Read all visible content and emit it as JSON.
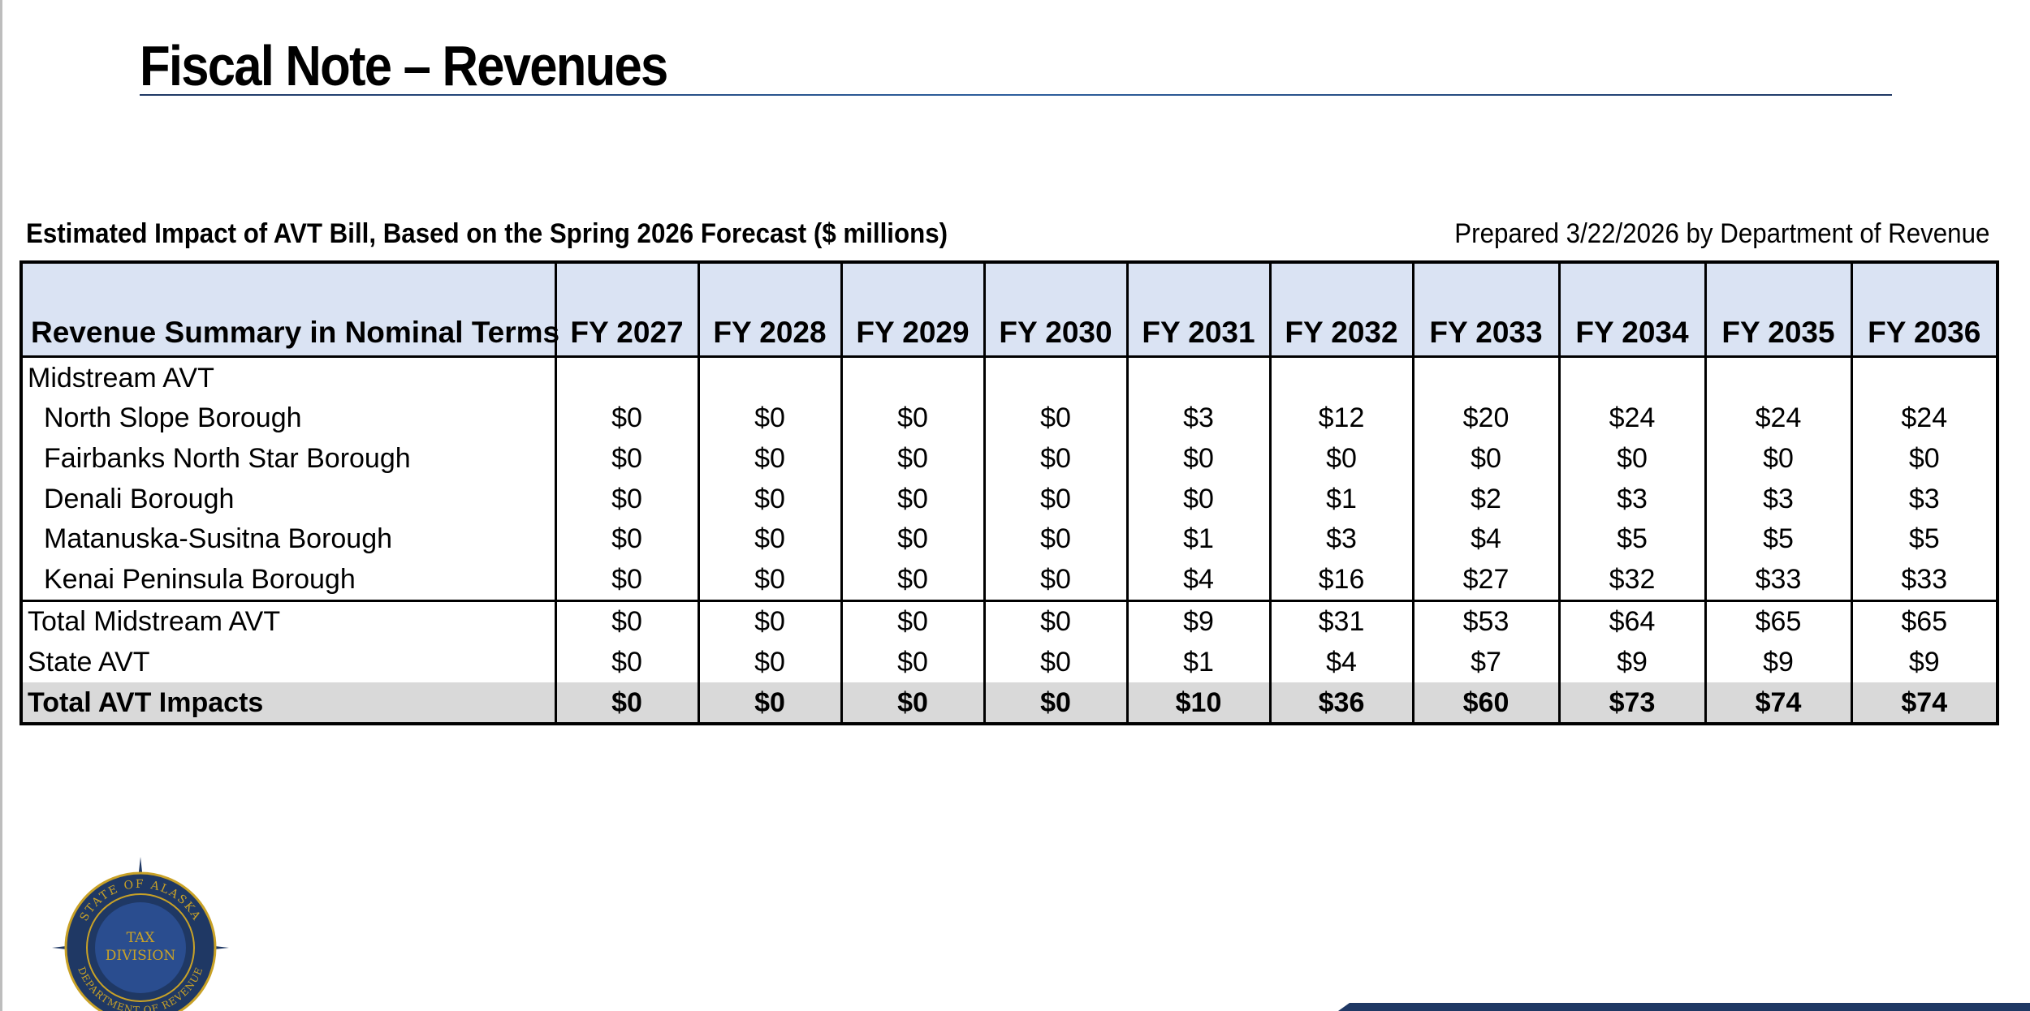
{
  "page": {
    "title": "Fiscal Note – Revenues"
  },
  "caption": {
    "left": "Estimated Impact of AVT Bill, Based on the Spring 2026 Forecast ($ millions)",
    "right": "Prepared 3/22/2026 by Department of Revenue"
  },
  "table": {
    "label_header": "Revenue Summary in Nominal Terms",
    "years": [
      "FY 2027",
      "FY 2028",
      "FY 2029",
      "FY 2030",
      "FY 2031",
      "FY 2032",
      "FY 2033",
      "FY 2034",
      "FY 2035",
      "FY 2036"
    ],
    "section_label": "Midstream AVT",
    "rows": [
      {
        "label": "North Slope Borough",
        "values": [
          "$0",
          "$0",
          "$0",
          "$0",
          "$3",
          "$12",
          "$20",
          "$24",
          "$24",
          "$24"
        ]
      },
      {
        "label": "Fairbanks North Star Borough",
        "values": [
          "$0",
          "$0",
          "$0",
          "$0",
          "$0",
          "$0",
          "$0",
          "$0",
          "$0",
          "$0"
        ]
      },
      {
        "label": "Denali Borough",
        "values": [
          "$0",
          "$0",
          "$0",
          "$0",
          "$0",
          "$1",
          "$2",
          "$3",
          "$3",
          "$3"
        ]
      },
      {
        "label": "Matanuska-Susitna Borough",
        "values": [
          "$0",
          "$0",
          "$0",
          "$0",
          "$1",
          "$3",
          "$4",
          "$5",
          "$5",
          "$5"
        ]
      },
      {
        "label": "Kenai Peninsula Borough",
        "values": [
          "$0",
          "$0",
          "$0",
          "$0",
          "$4",
          "$16",
          "$27",
          "$32",
          "$33",
          "$33"
        ]
      }
    ],
    "total_midstream": {
      "label": "Total Midstream AVT",
      "values": [
        "$0",
        "$0",
        "$0",
        "$0",
        "$9",
        "$31",
        "$53",
        "$64",
        "$65",
        "$65"
      ]
    },
    "state_avt": {
      "label": "State AVT",
      "values": [
        "$0",
        "$0",
        "$0",
        "$0",
        "$1",
        "$4",
        "$7",
        "$9",
        "$9",
        "$9"
      ]
    },
    "total_impacts": {
      "label": "Total AVT Impacts",
      "values": [
        "$0",
        "$0",
        "$0",
        "$0",
        "$10",
        "$36",
        "$60",
        "$73",
        "$74",
        "$74"
      ]
    }
  },
  "logo": {
    "icon": "state-of-alaska-tax-division-seal-icon",
    "ring_top": "STATE OF ALASKA",
    "ring_bottom": "DEPARTMENT OF REVENUE",
    "center_line1": "TAX",
    "center_line2": "DIVISION"
  },
  "colors": {
    "header_fill": "#dae3f3",
    "total_fill": "#d9d9d9",
    "navy": "#1f3864",
    "seal_gold": "#c9a227"
  }
}
